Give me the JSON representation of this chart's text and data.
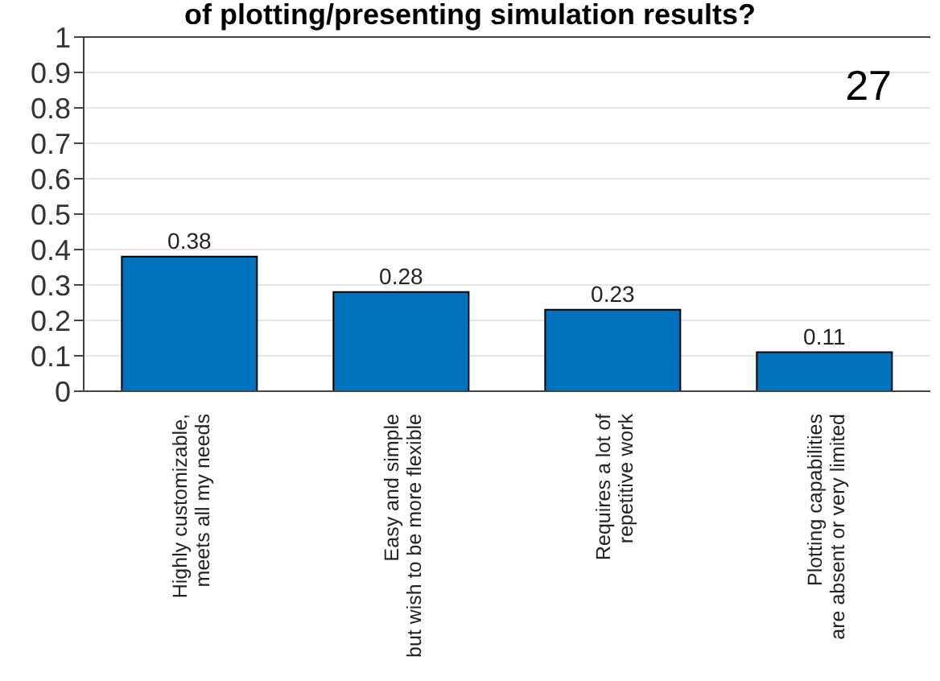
{
  "chart_data": {
    "type": "bar",
    "title": "of plotting/presenting simulation results?",
    "categories": [
      "Highly customizable,\nmeets all my needs",
      "Easy and simple\nbut wish to be more flexible",
      "Requires a lot of\nrepetitive work",
      "Plotting capabilities\nare absent or very limited"
    ],
    "values": [
      0.38,
      0.28,
      0.23,
      0.11
    ],
    "color": "#0072bd",
    "ylim": [
      0,
      1
    ],
    "yticks": [
      0,
      0.1,
      0.2,
      0.3,
      0.4,
      0.5,
      0.6,
      0.7,
      0.8,
      0.9,
      1
    ],
    "grid": "y",
    "data_labels": true,
    "annotations": [
      "27"
    ]
  }
}
